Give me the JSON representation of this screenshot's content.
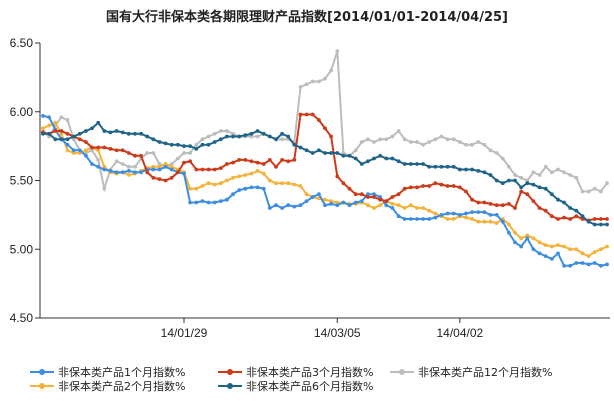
{
  "chart_data": {
    "type": "line",
    "title": "国有大行非保本类各期限理财产品指数[2014/01/01-2014/04/25]",
    "xlabel": "",
    "ylabel": "",
    "ylim": [
      4.5,
      6.5
    ],
    "yticks": [
      "4.50",
      "5.00",
      "5.50",
      "6.00",
      "6.50"
    ],
    "xticks": [
      {
        "label": "14/01/29",
        "index": 23
      },
      {
        "label": "14/03/05",
        "index": 48
      },
      {
        "label": "14/04/02",
        "index": 68
      }
    ],
    "grid": "horizontal-dashed",
    "legend_position": "bottom",
    "colors": {
      "1m": "#3d8ee0",
      "2m": "#f4b23a",
      "3m": "#cc3a1a",
      "6m": "#1f6488",
      "12m": "#bdbdbd"
    },
    "series": [
      {
        "key": "1m",
        "name": "非保本类产品1个月指数%",
        "values": [
          5.97,
          5.96,
          5.87,
          5.8,
          5.76,
          5.72,
          5.72,
          5.68,
          5.62,
          5.6,
          5.58,
          5.57,
          5.56,
          5.56,
          5.57,
          5.56,
          5.56,
          5.58,
          5.58,
          5.58,
          5.6,
          5.58,
          5.56,
          5.55,
          5.34,
          5.34,
          5.35,
          5.34,
          5.34,
          5.35,
          5.36,
          5.4,
          5.43,
          5.44,
          5.45,
          5.45,
          5.44,
          5.3,
          5.32,
          5.3,
          5.32,
          5.31,
          5.32,
          5.35,
          5.38,
          5.4,
          5.32,
          5.33,
          5.32,
          5.34,
          5.32,
          5.34,
          5.35,
          5.4,
          5.4,
          5.38,
          5.32,
          5.3,
          5.24,
          5.22,
          5.22,
          5.22,
          5.22,
          5.22,
          5.23,
          5.25,
          5.26,
          5.26,
          5.25,
          5.26,
          5.27,
          5.27,
          5.27,
          5.25,
          5.25,
          5.2,
          5.12,
          5.05,
          5.02,
          5.08,
          5.0,
          4.97,
          4.95,
          4.93,
          4.97,
          4.88,
          4.88,
          4.9,
          4.9,
          4.89,
          4.9,
          4.88,
          4.89
        ]
      },
      {
        "key": "2m",
        "name": "非保本类产品2个月指数%",
        "values": [
          5.88,
          5.9,
          5.92,
          5.84,
          5.72,
          5.7,
          5.7,
          5.72,
          5.74,
          5.72,
          5.6,
          5.56,
          5.55,
          5.56,
          5.54,
          5.55,
          5.57,
          5.59,
          5.6,
          5.6,
          5.62,
          5.6,
          5.58,
          5.56,
          5.44,
          5.44,
          5.46,
          5.48,
          5.47,
          5.48,
          5.5,
          5.52,
          5.53,
          5.54,
          5.55,
          5.57,
          5.55,
          5.5,
          5.48,
          5.48,
          5.48,
          5.47,
          5.46,
          5.4,
          5.38,
          5.37,
          5.36,
          5.35,
          5.34,
          5.34,
          5.33,
          5.33,
          5.34,
          5.32,
          5.3,
          5.32,
          5.35,
          5.33,
          5.32,
          5.3,
          5.32,
          5.3,
          5.3,
          5.28,
          5.26,
          5.24,
          5.22,
          5.22,
          5.24,
          5.23,
          5.22,
          5.2,
          5.2,
          5.2,
          5.19,
          5.22,
          5.18,
          5.12,
          5.08,
          5.1,
          5.08,
          5.05,
          5.03,
          5.02,
          5.03,
          5.02,
          5.0,
          5.0,
          4.97,
          4.95,
          4.98,
          5.0,
          5.02
        ]
      },
      {
        "key": "3m",
        "name": "非保本类产品3个月指数%",
        "values": [
          5.85,
          5.84,
          5.86,
          5.86,
          5.84,
          5.82,
          5.8,
          5.78,
          5.74,
          5.74,
          5.74,
          5.73,
          5.72,
          5.72,
          5.7,
          5.68,
          5.68,
          5.56,
          5.52,
          5.51,
          5.5,
          5.52,
          5.56,
          5.63,
          5.64,
          5.58,
          5.58,
          5.58,
          5.58,
          5.59,
          5.62,
          5.63,
          5.65,
          5.65,
          5.64,
          5.63,
          5.62,
          5.65,
          5.6,
          5.65,
          5.64,
          5.65,
          5.98,
          5.98,
          5.98,
          5.94,
          5.88,
          5.82,
          5.53,
          5.48,
          5.44,
          5.4,
          5.4,
          5.38,
          5.38,
          5.36,
          5.35,
          5.38,
          5.4,
          5.44,
          5.45,
          5.45,
          5.46,
          5.46,
          5.48,
          5.47,
          5.46,
          5.46,
          5.45,
          5.42,
          5.36,
          5.34,
          5.34,
          5.33,
          5.32,
          5.32,
          5.33,
          5.3,
          5.42,
          5.4,
          5.35,
          5.3,
          5.28,
          5.24,
          5.22,
          5.23,
          5.22,
          5.24,
          5.22,
          5.21,
          5.22,
          5.22,
          5.22
        ]
      },
      {
        "key": "6m",
        "name": "非保本类产品6个月指数%",
        "values": [
          5.84,
          5.84,
          5.8,
          5.8,
          5.8,
          5.82,
          5.84,
          5.86,
          5.88,
          5.92,
          5.86,
          5.85,
          5.86,
          5.85,
          5.84,
          5.84,
          5.84,
          5.82,
          5.8,
          5.78,
          5.77,
          5.76,
          5.76,
          5.75,
          5.75,
          5.73,
          5.76,
          5.76,
          5.78,
          5.8,
          5.82,
          5.82,
          5.82,
          5.83,
          5.84,
          5.86,
          5.84,
          5.82,
          5.8,
          5.84,
          5.82,
          5.76,
          5.74,
          5.72,
          5.7,
          5.72,
          5.7,
          5.7,
          5.7,
          5.68,
          5.68,
          5.66,
          5.62,
          5.64,
          5.66,
          5.68,
          5.66,
          5.66,
          5.64,
          5.62,
          5.62,
          5.62,
          5.62,
          5.6,
          5.6,
          5.6,
          5.6,
          5.6,
          5.58,
          5.58,
          5.58,
          5.57,
          5.56,
          5.54,
          5.5,
          5.48,
          5.5,
          5.5,
          5.45,
          5.48,
          5.47,
          5.45,
          5.44,
          5.4,
          5.36,
          5.34,
          5.3,
          5.28,
          5.24,
          5.2,
          5.18,
          5.18,
          5.18
        ]
      },
      {
        "key": "12m",
        "name": "非保本类产品12个月指数%",
        "values": [
          5.86,
          5.82,
          5.9,
          5.96,
          5.94,
          5.8,
          5.72,
          5.7,
          5.72,
          5.65,
          5.44,
          5.58,
          5.64,
          5.62,
          5.6,
          5.6,
          5.66,
          5.7,
          5.7,
          5.62,
          5.6,
          5.62,
          5.66,
          5.7,
          5.7,
          5.76,
          5.8,
          5.82,
          5.84,
          5.86,
          5.86,
          5.84,
          5.82,
          5.82,
          5.82,
          5.82,
          5.84,
          5.82,
          5.8,
          5.8,
          5.8,
          5.78,
          6.18,
          6.2,
          6.22,
          6.22,
          6.24,
          6.3,
          6.44,
          5.7,
          5.68,
          5.72,
          5.78,
          5.8,
          5.78,
          5.8,
          5.8,
          5.82,
          5.86,
          5.8,
          5.78,
          5.78,
          5.76,
          5.78,
          5.8,
          5.82,
          5.8,
          5.8,
          5.78,
          5.76,
          5.76,
          5.78,
          5.76,
          5.72,
          5.7,
          5.66,
          5.6,
          5.54,
          5.52,
          5.5,
          5.56,
          5.54,
          5.6,
          5.56,
          5.58,
          5.56,
          5.54,
          5.52,
          5.42,
          5.42,
          5.44,
          5.42,
          5.48
        ]
      }
    ]
  }
}
